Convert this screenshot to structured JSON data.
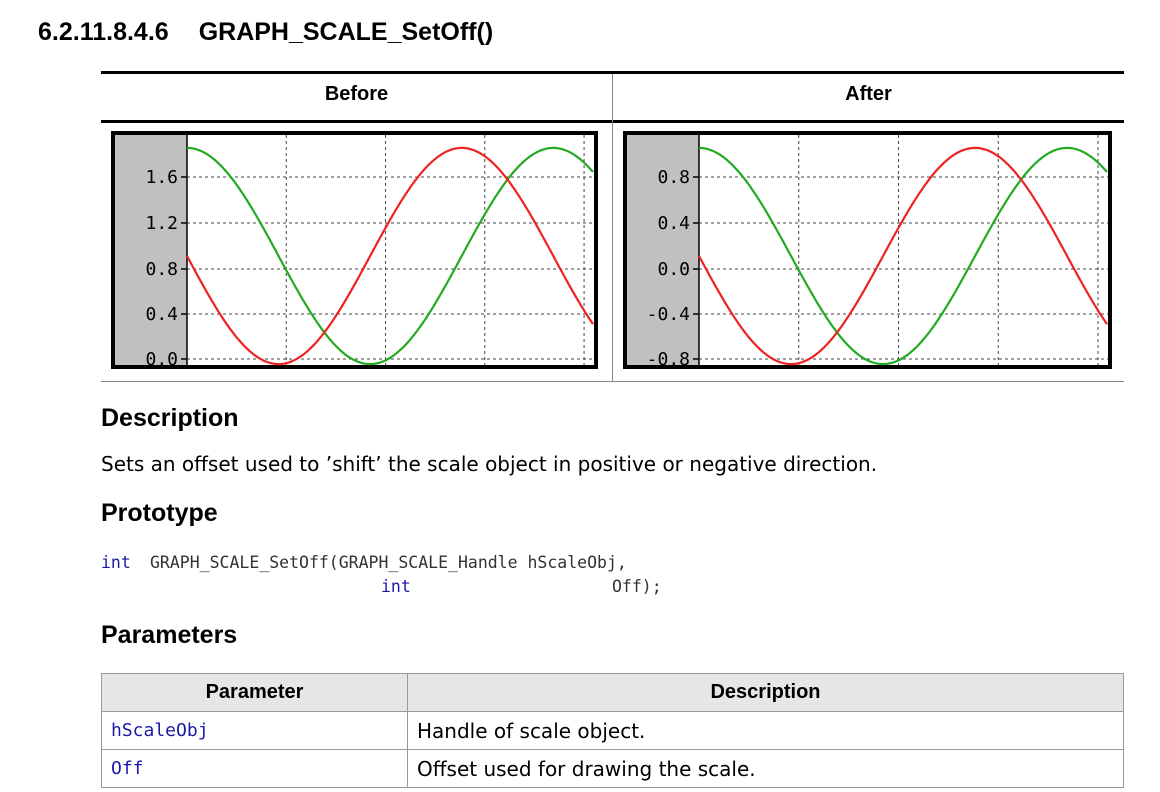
{
  "heading": {
    "number": "6.2.11.8.4.6",
    "title": "GRAPH_SCALE_SetOff()"
  },
  "compare": {
    "before_label": "Before",
    "after_label": "After"
  },
  "chart_data": [
    {
      "type": "line",
      "panel": "Before",
      "y_ticks": [
        "1.6",
        "1.2",
        "0.8",
        "0.4",
        "0.0"
      ],
      "series": [
        {
          "color": "#22aa22",
          "phase": 0
        },
        {
          "color": "#ee2222",
          "phase": 1.5708
        }
      ],
      "period_fraction": 0.9,
      "grid": true
    },
    {
      "type": "line",
      "panel": "After",
      "y_ticks": [
        "0.8",
        "0.4",
        "0.0",
        "-0.4",
        "-0.8"
      ],
      "series": [
        {
          "color": "#22aa22",
          "phase": 0
        },
        {
          "color": "#ee2222",
          "phase": 1.5708
        }
      ],
      "period_fraction": 0.9,
      "grid": true
    }
  ],
  "description": {
    "heading": "Description",
    "text": "Sets an offset used to ’shift’ the scale object in positive or negative direction."
  },
  "prototype": {
    "heading": "Prototype",
    "line1_type": "int",
    "line1_rest": "GRAPH_SCALE_SetOff(GRAPH_SCALE_Handle hScaleObj,",
    "line2_type": "int",
    "line2_arg": "Off);"
  },
  "parameters": {
    "heading": "Parameters",
    "col_param": "Parameter",
    "col_desc": "Description",
    "rows": [
      {
        "name": "hScaleObj",
        "desc": "Handle of scale object."
      },
      {
        "name": "Off",
        "desc": "Offset used for drawing the scale."
      }
    ]
  }
}
